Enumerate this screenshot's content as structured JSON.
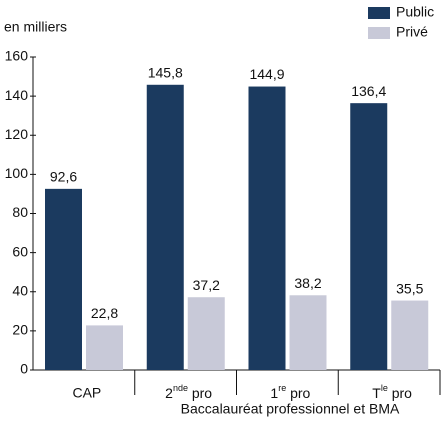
{
  "chart_data": {
    "type": "bar",
    "unit_label": "en milliers",
    "group_label": "Baccalauréat professionnel et BMA",
    "categories": [
      "CAP",
      "2nde pro",
      "1re pro",
      "Tle pro"
    ],
    "series": [
      {
        "name": "Public",
        "color": "#1b3a5f",
        "values": [
          92.6,
          145.8,
          144.9,
          136.4
        ],
        "value_labels": [
          "92,6",
          "145,8",
          "144,9",
          "136,4"
        ]
      },
      {
        "name": "Privé",
        "color": "#c8c9d8",
        "values": [
          22.8,
          37.2,
          38.2,
          35.5
        ],
        "value_labels": [
          "22,8",
          "37,2",
          "38,2",
          "35,5"
        ]
      }
    ],
    "ylim": [
      0,
      160
    ],
    "yticks": [
      0,
      20,
      40,
      60,
      80,
      100,
      120,
      140,
      160
    ],
    "legend": "top-right"
  }
}
